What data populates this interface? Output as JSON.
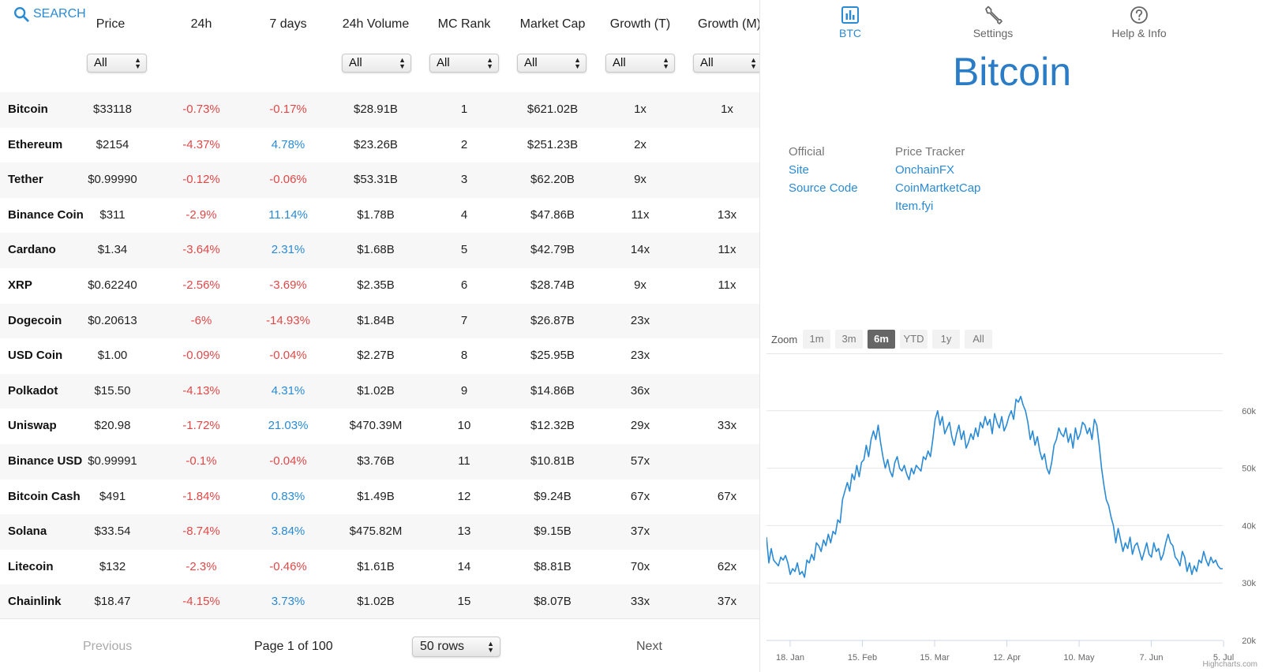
{
  "search": {
    "label": "SEARCH"
  },
  "table": {
    "columns": [
      {
        "key": "price",
        "label": "Price"
      },
      {
        "key": "h24",
        "label": "24h"
      },
      {
        "key": "d7",
        "label": "7 days"
      },
      {
        "key": "vol",
        "label": "24h Volume"
      },
      {
        "key": "rank",
        "label": "MC Rank"
      },
      {
        "key": "mcap",
        "label": "Market Cap"
      },
      {
        "key": "gt",
        "label": "Growth (T)"
      },
      {
        "key": "gm",
        "label": "Growth (M)"
      }
    ],
    "filters": {
      "price": "All",
      "vol": "All",
      "rank": "All",
      "mcap": "All",
      "gt": "All",
      "gm": "All"
    },
    "rows": [
      {
        "name": "Bitcoin",
        "price": "$33118",
        "h24": "-0.73%",
        "d7": "-0.17%",
        "vol": "$28.91B",
        "rank": "1",
        "mcap": "$621.02B",
        "gt": "1x",
        "gm": "1x"
      },
      {
        "name": "Ethereum",
        "price": "$2154",
        "h24": "-4.37%",
        "d7": "4.78%",
        "vol": "$23.26B",
        "rank": "2",
        "mcap": "$251.23B",
        "gt": "2x",
        "gm": ""
      },
      {
        "name": "Tether",
        "price": "$0.99990",
        "h24": "-0.12%",
        "d7": "-0.06%",
        "vol": "$53.31B",
        "rank": "3",
        "mcap": "$62.20B",
        "gt": "9x",
        "gm": ""
      },
      {
        "name": "Binance Coin",
        "price": "$311",
        "h24": "-2.9%",
        "d7": "11.14%",
        "vol": "$1.78B",
        "rank": "4",
        "mcap": "$47.86B",
        "gt": "11x",
        "gm": "13x"
      },
      {
        "name": "Cardano",
        "price": "$1.34",
        "h24": "-3.64%",
        "d7": "2.31%",
        "vol": "$1.68B",
        "rank": "5",
        "mcap": "$42.79B",
        "gt": "14x",
        "gm": "11x"
      },
      {
        "name": "XRP",
        "price": "$0.62240",
        "h24": "-2.56%",
        "d7": "-3.69%",
        "vol": "$2.35B",
        "rank": "6",
        "mcap": "$28.74B",
        "gt": "9x",
        "gm": "11x"
      },
      {
        "name": "Dogecoin",
        "price": "$0.20613",
        "h24": "-6%",
        "d7": "-14.93%",
        "vol": "$1.84B",
        "rank": "7",
        "mcap": "$26.87B",
        "gt": "23x",
        "gm": ""
      },
      {
        "name": "USD Coin",
        "price": "$1.00",
        "h24": "-0.09%",
        "d7": "-0.04%",
        "vol": "$2.27B",
        "rank": "8",
        "mcap": "$25.95B",
        "gt": "23x",
        "gm": ""
      },
      {
        "name": "Polkadot",
        "price": "$15.50",
        "h24": "-4.13%",
        "d7": "4.31%",
        "vol": "$1.02B",
        "rank": "9",
        "mcap": "$14.86B",
        "gt": "36x",
        "gm": ""
      },
      {
        "name": "Uniswap",
        "price": "$20.98",
        "h24": "-1.72%",
        "d7": "21.03%",
        "vol": "$470.39M",
        "rank": "10",
        "mcap": "$12.32B",
        "gt": "29x",
        "gm": "33x"
      },
      {
        "name": "Binance USD",
        "price": "$0.99991",
        "h24": "-0.1%",
        "d7": "-0.04%",
        "vol": "$3.76B",
        "rank": "11",
        "mcap": "$10.81B",
        "gt": "57x",
        "gm": ""
      },
      {
        "name": "Bitcoin Cash",
        "price": "$491",
        "h24": "-1.84%",
        "d7": "0.83%",
        "vol": "$1.49B",
        "rank": "12",
        "mcap": "$9.24B",
        "gt": "67x",
        "gm": "67x"
      },
      {
        "name": "Solana",
        "price": "$33.54",
        "h24": "-8.74%",
        "d7": "3.84%",
        "vol": "$475.82M",
        "rank": "13",
        "mcap": "$9.15B",
        "gt": "37x",
        "gm": ""
      },
      {
        "name": "Litecoin",
        "price": "$132",
        "h24": "-2.3%",
        "d7": "-0.46%",
        "vol": "$1.61B",
        "rank": "14",
        "mcap": "$8.81B",
        "gt": "70x",
        "gm": "62x"
      },
      {
        "name": "Chainlink",
        "price": "$18.47",
        "h24": "-4.15%",
        "d7": "3.73%",
        "vol": "$1.02B",
        "rank": "15",
        "mcap": "$8.07B",
        "gt": "33x",
        "gm": "37x"
      }
    ]
  },
  "pager": {
    "previous": "Previous",
    "page_info": "Page 1 of 100",
    "rows_select": "50 rows",
    "next": "Next"
  },
  "tabs": [
    {
      "id": "btc",
      "label": "BTC",
      "icon": "bar-chart-icon",
      "active": true
    },
    {
      "id": "settings",
      "label": "Settings",
      "icon": "wrench-icon",
      "active": false
    },
    {
      "id": "help",
      "label": "Help & Info",
      "icon": "help-circle-icon",
      "active": false
    }
  ],
  "detail": {
    "title": "Bitcoin",
    "official_header": "Official",
    "official_links": [
      "Site",
      "Source Code"
    ],
    "tracker_header": "Price Tracker",
    "tracker_links": [
      "OnchainFX",
      "CoinMartketCap",
      "Item.fyi"
    ]
  },
  "zoom": {
    "label": "Zoom",
    "buttons": [
      "1m",
      "3m",
      "6m",
      "YTD",
      "1y",
      "All"
    ],
    "selected": "6m"
  },
  "colors": {
    "accent": "#2a8ad4",
    "negative": "#e04848",
    "line": "#2a8ad4"
  },
  "chart_data": {
    "type": "line",
    "series": [
      {
        "values": [
          38,
          33.5,
          36,
          34,
          33.5,
          33,
          34.5,
          34,
          34.8,
          33.5,
          31.5,
          32.5,
          32,
          33.5,
          31.5,
          32,
          31,
          34,
          33.5,
          35,
          34,
          37,
          36.5,
          35.5,
          37.5,
          36.5,
          38.5,
          37,
          39,
          38.5,
          41,
          40.5,
          44.5,
          46,
          47.5,
          46,
          49,
          48,
          50.5,
          48.5,
          51,
          51.5,
          54,
          52,
          55,
          56.5,
          55,
          57.5,
          54.5,
          52,
          50,
          51.5,
          49.5,
          48.5,
          51,
          52,
          50,
          49.5,
          50.5,
          49,
          48,
          50,
          49,
          50.5,
          50,
          49.5,
          52,
          51.5,
          53,
          52,
          55,
          58.5,
          60,
          57.5,
          59,
          56,
          57,
          58,
          55.5,
          54,
          56,
          57.5,
          55,
          56.5,
          53.5,
          54.5,
          56,
          55,
          57,
          55.5,
          58,
          57,
          59,
          57.5,
          58.5,
          56,
          59.5,
          58,
          57,
          59,
          56.5,
          57.5,
          59,
          60,
          58.5,
          62,
          61.5,
          62.5,
          61,
          60,
          58,
          55,
          56.5,
          54,
          55.5,
          53,
          51.5,
          52.5,
          50,
          49,
          51,
          54,
          55,
          57,
          56,
          55.5,
          57,
          54.5,
          56,
          53.5,
          57,
          55,
          56,
          58,
          57.5,
          56,
          57,
          55,
          58.5,
          57.5,
          54,
          50,
          47,
          44.5,
          43.5,
          41.5,
          40,
          37,
          39.5,
          37.5,
          35.5,
          37,
          36,
          38,
          35,
          36.5,
          37,
          35.5,
          34,
          35.5,
          37,
          35,
          34.5,
          37,
          35.5,
          36,
          34,
          35,
          37,
          38.5,
          37,
          36.5,
          34.5,
          34,
          33,
          35.5,
          34.5,
          32,
          33.5,
          31.5,
          33,
          32,
          34,
          33.5,
          35.5,
          34,
          33,
          34.5,
          33.5,
          34,
          33,
          32.5,
          32.5
        ]
      }
    ],
    "x_labels": [
      "18. Jan",
      "15. Feb",
      "15. Mar",
      "12. Apr",
      "10. May",
      "7. Jun",
      "5. Jul"
    ],
    "y_labels": [
      "20k",
      "30k",
      "40k",
      "50k",
      "60k"
    ],
    "ylim": [
      20,
      70
    ],
    "credit": "Highcharts.com"
  }
}
